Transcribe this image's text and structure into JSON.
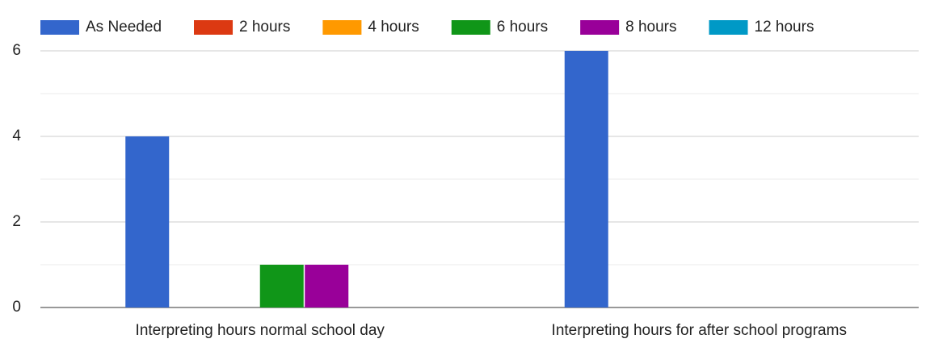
{
  "chart_data": {
    "type": "bar",
    "categories": [
      "Interpreting hours normal school day",
      "Interpreting hours for after school programs"
    ],
    "series": [
      {
        "name": "As Needed",
        "color": "#3366cc",
        "values": [
          4,
          6
        ]
      },
      {
        "name": "2 hours",
        "color": "#dc3912",
        "values": [
          0,
          0
        ]
      },
      {
        "name": "4 hours",
        "color": "#ff9900",
        "values": [
          0,
          0
        ]
      },
      {
        "name": "6 hours",
        "color": "#109618",
        "values": [
          1,
          0
        ]
      },
      {
        "name": "8 hours",
        "color": "#990099",
        "values": [
          1,
          0
        ]
      },
      {
        "name": "12 hours",
        "color": "#0099c6",
        "values": [
          0,
          0
        ]
      }
    ],
    "ylim": [
      0,
      6
    ],
    "yticks": [
      0,
      2,
      4,
      6
    ],
    "y_minor_ticks": [
      1,
      3,
      5
    ],
    "grid": true,
    "legend": "top"
  }
}
